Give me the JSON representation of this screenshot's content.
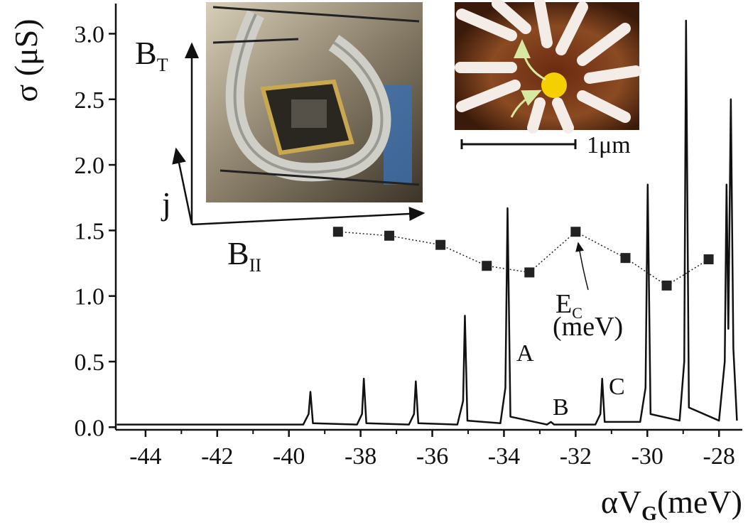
{
  "chart_data": {
    "type": "line",
    "y_label": "σ (μS)",
    "x_label": {
      "main": "αV",
      "sub": "G",
      "unit": "(meV)"
    },
    "xlim": [
      -44.83,
      -27.35
    ],
    "ylim": [
      -0.02,
      3.23
    ],
    "xticks": [
      -44,
      -42,
      -40,
      -38,
      -36,
      -34,
      -32,
      -30,
      -28
    ],
    "yticks": [
      {
        "value": 0,
        "label": "0.0"
      },
      {
        "value": 0.5,
        "label": "0.5"
      },
      {
        "value": 1,
        "label": "1.0"
      },
      {
        "value": 1.5,
        "label": "1.5"
      },
      {
        "value": 2,
        "label": "2.0"
      },
      {
        "value": 2.5,
        "label": "2.5"
      },
      {
        "value": 3,
        "label": "3.0"
      }
    ],
    "grid": false,
    "series": [
      {
        "color": "#111111",
        "x": [
          -44.8,
          -39.6,
          -39.45,
          -39.4,
          -39.33,
          -38.1,
          -37.96,
          -37.91,
          -37.84,
          -36.65,
          -36.51,
          -36.46,
          -36.39,
          -35.3,
          -35.14,
          -35.09,
          -35.02,
          -34.1,
          -33.96,
          -33.9,
          -33.82,
          -32.8,
          -32.69,
          -32.6,
          -31.45,
          -31.31,
          -31.26,
          -31.19,
          -30.2,
          -30.05,
          -29.99,
          -29.91,
          -29.1,
          -28.97,
          -28.92,
          -28.84,
          -28.0,
          -27.84,
          -27.79,
          -27.74,
          -27.67,
          -27.6,
          -27.5
        ],
        "values": [
          0.02,
          0.02,
          0.1,
          0.27,
          0.03,
          0.02,
          0.1,
          0.37,
          0.03,
          0.02,
          0.1,
          0.35,
          0.03,
          0.02,
          0.2,
          0.85,
          0.05,
          0.03,
          0.3,
          1.67,
          0.08,
          0.02,
          0.04,
          0.02,
          0.02,
          0.1,
          0.37,
          0.04,
          0.04,
          0.3,
          1.85,
          0.1,
          0.05,
          0.5,
          3.1,
          0.15,
          0.05,
          0.5,
          1.85,
          0.75,
          2.5,
          0.6,
          0.05
        ]
      }
    ],
    "ec_series": {
      "color": "#222222",
      "label": {
        "main": "E",
        "sub": "C",
        "unit": "(meV)"
      },
      "x": [
        -38.63,
        -37.2,
        -35.77,
        -34.48,
        -33.29,
        -32.0,
        -30.61,
        -29.46,
        -28.29
      ],
      "values": [
        1.49,
        1.46,
        1.39,
        1.23,
        1.18,
        1.49,
        1.29,
        1.08,
        1.28
      ]
    },
    "peak_labels": [
      "A",
      "B",
      "C"
    ],
    "inset": {
      "b_t": {
        "main": "B",
        "sub": "T"
      },
      "j": "j",
      "b_par": {
        "main": "B",
        "sub": "II"
      },
      "scale": "1μm"
    }
  }
}
